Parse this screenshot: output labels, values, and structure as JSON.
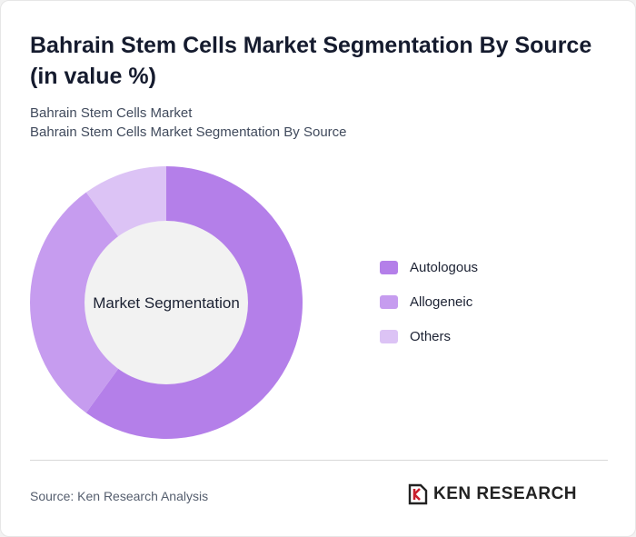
{
  "header": {
    "title": "Bahrain Stem Cells Market Segmentation By Source (in value %)",
    "subtitle_line1": "Bahrain Stem Cells Market",
    "subtitle_line2": "Bahrain Stem Cells Market Segmentation By Source"
  },
  "chart_data": {
    "type": "pie",
    "center_label": "Market Segmentation",
    "legend_position": "right",
    "series": [
      {
        "name": "Autologous",
        "value": 60,
        "color": "#b47fe9"
      },
      {
        "name": "Allogeneic",
        "value": 30,
        "color": "#c69cef"
      },
      {
        "name": "Others",
        "value": 10,
        "color": "#dcc3f5"
      }
    ]
  },
  "footer": {
    "source": "Source: Ken Research Analysis",
    "logo_text": "KEN RESEARCH",
    "logo_icon": "ken-research-logo-icon"
  }
}
